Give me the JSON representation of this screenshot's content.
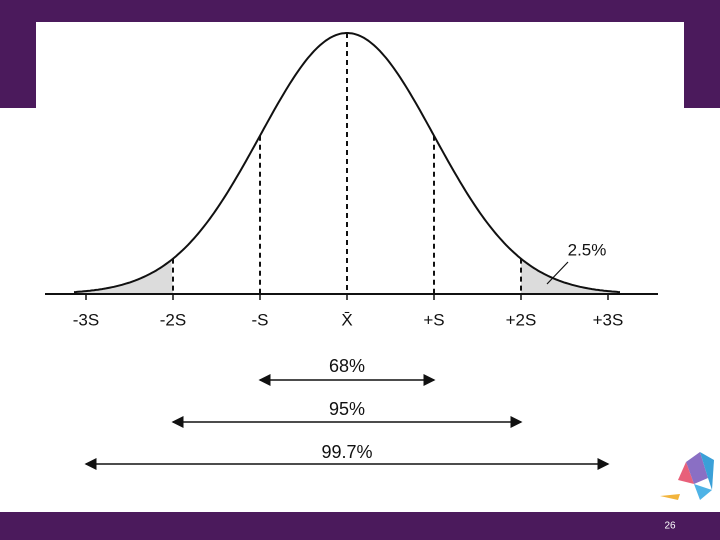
{
  "diagram": {
    "axis_labels": [
      "-3S",
      "-2S",
      "-S",
      "X̄",
      "+S",
      "+2S",
      "+3S"
    ],
    "tail_label": "2.5%",
    "ranges": [
      "68%",
      "95%",
      "99.7%"
    ],
    "page_number": "26"
  }
}
